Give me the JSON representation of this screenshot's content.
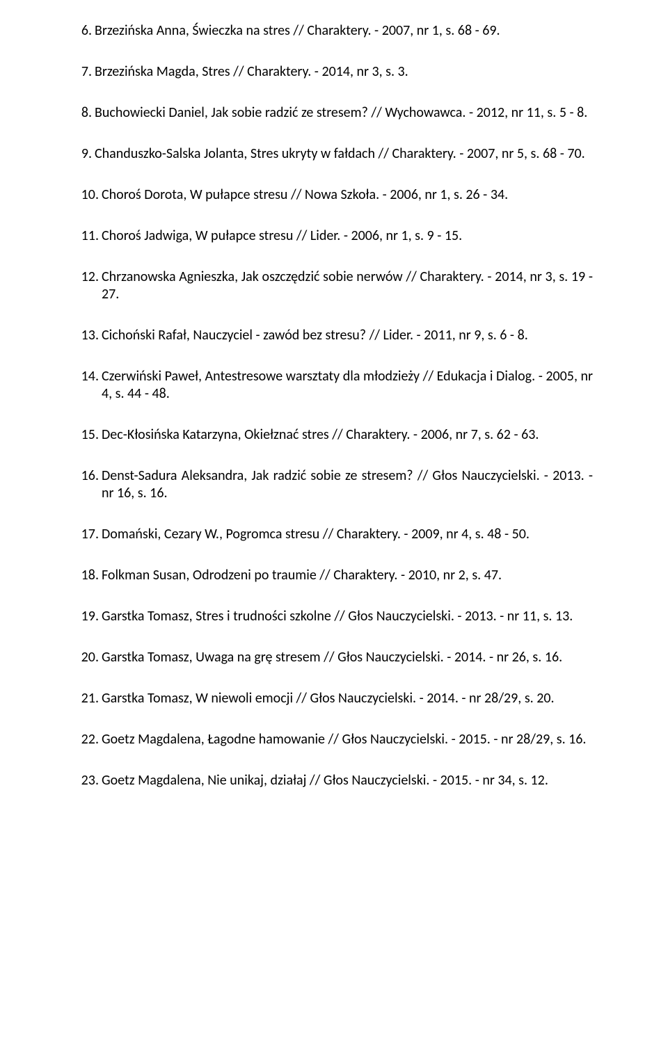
{
  "entries": [
    {
      "n": "6.",
      "t": "Brzezińska Anna, Świeczka na stres // Charaktery. - 2007, nr 1, s. 68 - 69."
    },
    {
      "n": "7.",
      "t": "Brzezińska Magda, Stres // Charaktery. - 2014, nr 3, s. 3."
    },
    {
      "n": "8.",
      "t": "Buchowiecki Daniel, Jak sobie radzić ze stresem? // Wychowawca. - 2012, nr 11, s. 5 - 8."
    },
    {
      "n": "9.",
      "t": "Chanduszko-Salska Jolanta, Stres ukryty w fałdach // Charaktery. - 2007, nr 5, s. 68 - 70."
    },
    {
      "n": "10.",
      "t": "Choroś Dorota, W pułapce stresu // Nowa Szkoła. - 2006, nr 1, s. 26 - 34."
    },
    {
      "n": "11.",
      "t": "Choroś Jadwiga, W pułapce stresu // Lider. - 2006, nr 1, s. 9 - 15."
    },
    {
      "n": "12.",
      "t": "Chrzanowska Agnieszka, Jak oszczędzić sobie nerwów // Charaktery. - 2014, nr 3, s. 19 - 27."
    },
    {
      "n": "13.",
      "t": "Cichoński Rafał, Nauczyciel - zawód bez stresu? // Lider. - 2011, nr 9, s. 6 - 8."
    },
    {
      "n": "14.",
      "t": "Czerwiński Paweł, Antestresowe warsztaty dla młodzieży // Edukacja i Dialog. - 2005, nr 4, s. 44 - 48."
    },
    {
      "n": "15.",
      "t": "Dec-Kłosińska Katarzyna, Okiełznać stres // Charaktery. - 2006, nr 7, s. 62 - 63."
    },
    {
      "n": "16.",
      "t": "Denst-Sadura Aleksandra, Jak radzić sobie ze stresem? // Głos Nauczycielski. - 2013. - nr 16, s. 16."
    },
    {
      "n": "17.",
      "t": "Domański, Cezary W., Pogromca stresu // Charaktery. - 2009, nr 4, s. 48 - 50."
    },
    {
      "n": "18.",
      "t": "Folkman Susan, Odrodzeni po traumie // Charaktery. - 2010, nr 2, s. 47."
    },
    {
      "n": "19.",
      "t": "Garstka Tomasz, Stres i trudności szkolne // Głos Nauczycielski. - 2013. - nr 11, s. 13."
    },
    {
      "n": "20.",
      "t": "Garstka Tomasz, Uwaga na grę stresem // Głos Nauczycielski. - 2014. - nr 26, s. 16."
    },
    {
      "n": "21.",
      "t": "Garstka Tomasz, W niewoli emocji // Głos Nauczycielski. - 2014. - nr 28/29, s. 20."
    },
    {
      "n": "22.",
      "t": "Goetz Magdalena, Łagodne hamowanie // Głos Nauczycielski. - 2015. - nr 28/29, s. 16."
    },
    {
      "n": "23.",
      "t": "Goetz Magdalena, Nie unikaj, działaj // Głos Nauczycielski. - 2015. - nr 34, s. 12."
    }
  ]
}
